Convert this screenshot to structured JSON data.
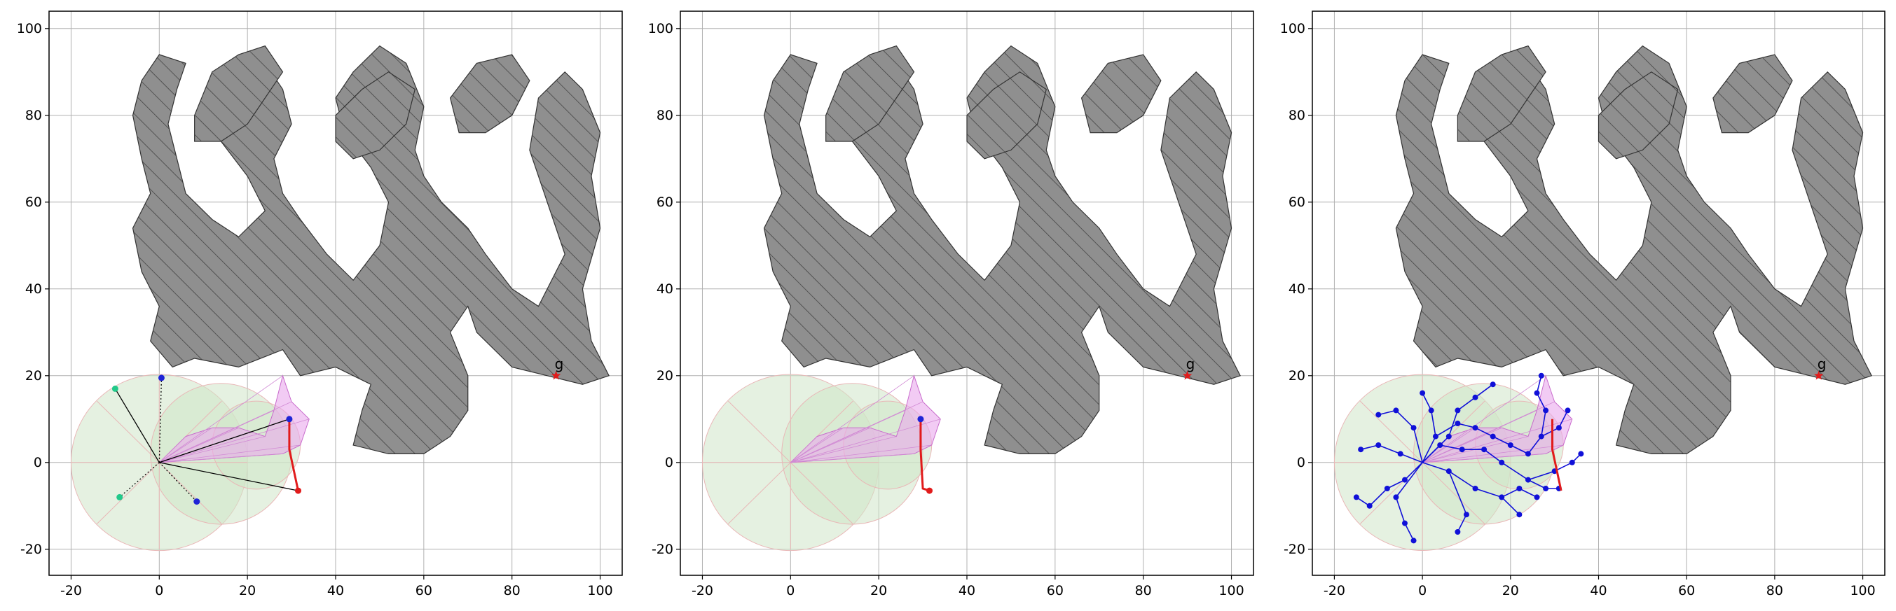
{
  "chart_data": [
    {
      "type": "scatter",
      "panel": "left",
      "xlim": [
        -25,
        105
      ],
      "ylim": [
        -26,
        104
      ],
      "xticks": [
        -20,
        0,
        20,
        40,
        60,
        80,
        100
      ],
      "yticks": [
        -20,
        0,
        20,
        40,
        60,
        80,
        100
      ],
      "grid": true,
      "goal": {
        "x": 90,
        "y": 20,
        "label": "g"
      },
      "obstacles_shown": true,
      "red_path": [
        [
          29.5,
          10
        ],
        [
          29.5,
          3
        ],
        [
          31.5,
          -6.5
        ]
      ],
      "candidate_points": [
        {
          "x": 0.5,
          "y": 19.5,
          "color": "#1f24d6"
        },
        {
          "x": -10,
          "y": 17,
          "color": "#22c98a"
        },
        {
          "x": -9,
          "y": -8,
          "color": "#22c98a"
        },
        {
          "x": 8.5,
          "y": -9,
          "color": "#1f24d6"
        },
        {
          "x": 29.5,
          "y": 10,
          "color": "#1f24d6"
        },
        {
          "x": 31.5,
          "y": -6.5,
          "color": "#e11b1b"
        }
      ]
    },
    {
      "type": "scatter",
      "panel": "middle",
      "xlim": [
        -25,
        105
      ],
      "ylim": [
        -26,
        104
      ],
      "xticks": [
        -20,
        0,
        20,
        40,
        60,
        80,
        100
      ],
      "yticks": [
        -20,
        0,
        20,
        40,
        60,
        80,
        100
      ],
      "grid": true,
      "goal": {
        "x": 90,
        "y": 20,
        "label": "g"
      },
      "obstacles_shown": true,
      "red_path": [
        [
          29.5,
          10
        ],
        [
          29.5,
          3
        ],
        [
          30,
          -6
        ],
        [
          31.5,
          -6.5
        ]
      ],
      "candidate_points": [
        {
          "x": 29.5,
          "y": 10,
          "color": "#1f24d6"
        },
        {
          "x": 31.5,
          "y": -6.5,
          "color": "#e11b1b"
        }
      ]
    },
    {
      "type": "scatter",
      "panel": "right",
      "xlim": [
        -25,
        105
      ],
      "ylim": [
        -26,
        104
      ],
      "xticks": [
        -20,
        0,
        20,
        40,
        60,
        80,
        100
      ],
      "yticks": [
        -20,
        0,
        20,
        40,
        60,
        80,
        100
      ],
      "grid": true,
      "goal": {
        "x": 90,
        "y": 20,
        "label": "g"
      },
      "obstacles_shown": true,
      "red_path": [
        [
          29.5,
          10
        ],
        [
          29.5,
          3
        ],
        [
          31.5,
          -6.5
        ]
      ],
      "tree_color": "#1010d8",
      "candidate_points": []
    }
  ],
  "colors": {
    "obstacle_fill": "#8f8f8f",
    "hatch": "#444444",
    "sensor_green": "#cfe5c9",
    "visible_magenta": "#e9a9ec",
    "path_red": "#e11b1b",
    "grid": "#b0b0b0"
  }
}
